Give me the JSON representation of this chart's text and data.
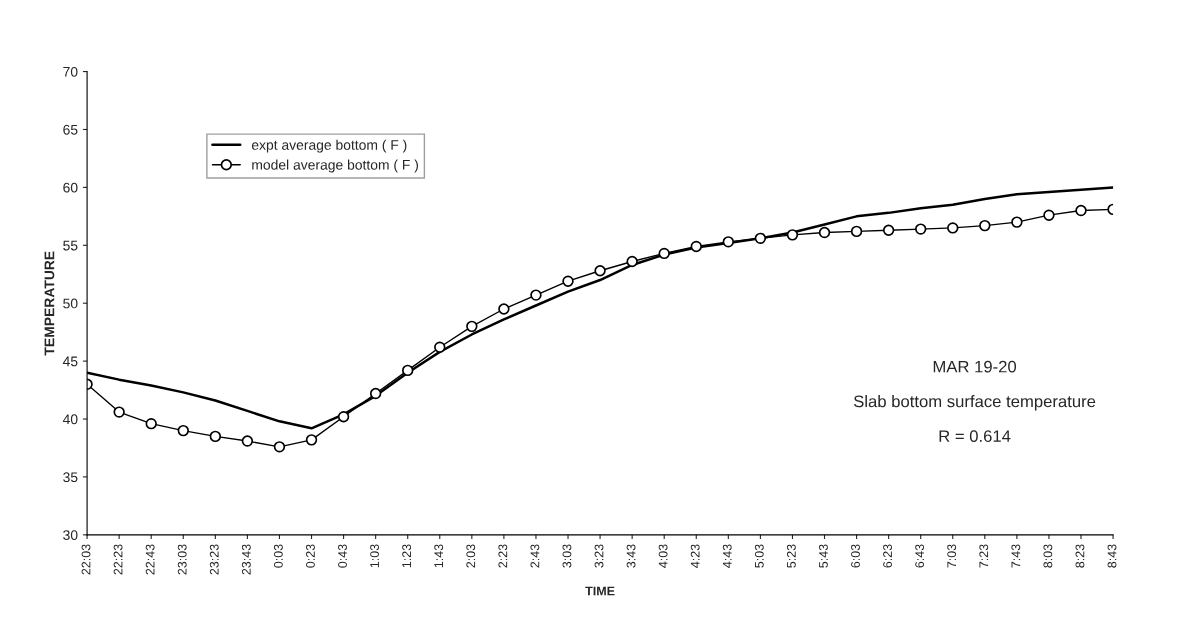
{
  "chart_data": {
    "type": "line",
    "xlabel": "TIME",
    "ylabel": "TEMPERATURE",
    "categories": [
      "22:03",
      "22:23",
      "22:43",
      "23:03",
      "23:23",
      "23:43",
      "0:03",
      "0:23",
      "0:43",
      "1:03",
      "1:23",
      "1:43",
      "2:03",
      "2:23",
      "2:43",
      "3:03",
      "3:23",
      "3:43",
      "4:03",
      "4:23",
      "4:43",
      "5:03",
      "5:23",
      "5:43",
      "6:03",
      "6:23",
      "6:43",
      "7:03",
      "7:23",
      "7:43",
      "8:03",
      "8:23",
      "8:43"
    ],
    "ylim": [
      30,
      70
    ],
    "yticks": [
      30,
      35,
      40,
      45,
      50,
      55,
      60,
      65,
      70
    ],
    "grid": false,
    "legend": "top left",
    "line_style": "solid",
    "annotations": [
      "MAR 19-20",
      "Slab bottom surface temperature",
      "R = 0.614"
    ],
    "series": [
      {
        "name": "expt average bottom ( F )",
        "color": "#000000",
        "marker": "none",
        "values": [
          44,
          43.4,
          42.9,
          42.3,
          41.6,
          40.7,
          39.8,
          39.2,
          40.4,
          42,
          44,
          45.8,
          47.3,
          48.6,
          49.8,
          51,
          52,
          53.3,
          54.2,
          54.8,
          55.2,
          55.6,
          56.1,
          56.8,
          57.5,
          57.8,
          58.2,
          58.5,
          59,
          59.4,
          59.6,
          59.8,
          60
        ]
      },
      {
        "name": "model average bottom ( F )",
        "color": "#000000",
        "marker": "circle",
        "values": [
          43,
          40.6,
          39.6,
          39.0,
          38.5,
          38.1,
          37.6,
          38.2,
          40.2,
          42.2,
          44.2,
          46.2,
          48.0,
          49.5,
          50.7,
          51.9,
          52.8,
          53.6,
          54.3,
          54.9,
          55.3,
          55.6,
          55.9,
          56.1,
          56.2,
          56.3,
          56.4,
          56.5,
          56.7,
          57.0,
          57.6,
          58.0,
          58.1
        ]
      }
    ]
  }
}
